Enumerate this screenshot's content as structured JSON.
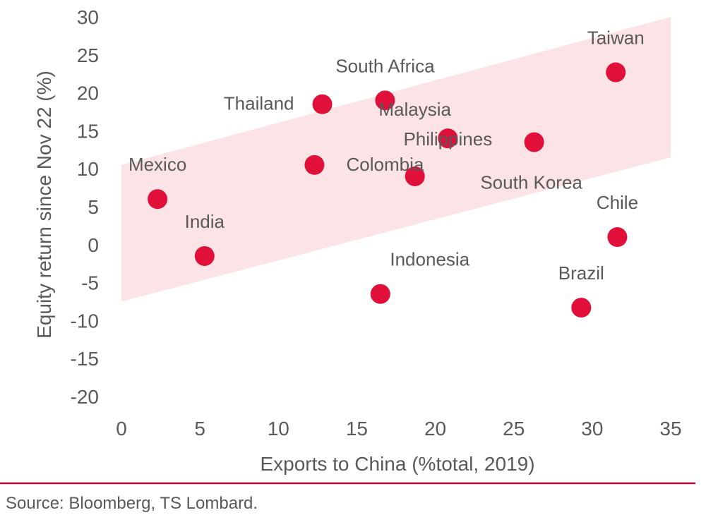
{
  "chart_data": {
    "type": "scatter",
    "xlabel": "Exports to China (%total, 2019)",
    "ylabel": "Equity return since Nov 22 (%)",
    "xlim": [
      0,
      35
    ],
    "ylim": [
      -20,
      30
    ],
    "x_ticks": [
      0,
      5,
      10,
      15,
      20,
      25,
      30,
      35
    ],
    "y_ticks": [
      30,
      25,
      20,
      15,
      10,
      5,
      0,
      -5,
      -10,
      -15,
      -20
    ],
    "grid": false,
    "point_color": "#E0103A",
    "band_color": "#FCE4E6",
    "separator_color": "#B00A3C",
    "band": {
      "x": [
        0,
        35
      ],
      "lower": [
        -7.5,
        11.5
      ],
      "upper": [
        10.5,
        30
      ]
    },
    "points": [
      {
        "label": "Mexico",
        "x": 2.3,
        "y": 6
      },
      {
        "label": "India",
        "x": 5.3,
        "y": -1.5
      },
      {
        "label": "Thailand",
        "x": 12.8,
        "y": 18.5
      },
      {
        "label": "Colombia",
        "x": 12.3,
        "y": 10.5
      },
      {
        "label": "South Africa",
        "x": 16.8,
        "y": 19
      },
      {
        "label": "Indonesia",
        "x": 16.5,
        "y": -6.5
      },
      {
        "label": "Malaysia",
        "x": 18.7,
        "y": 9
      },
      {
        "label": "Philippines",
        "x": 20.8,
        "y": 14
      },
      {
        "label": "South Korea",
        "x": 26.3,
        "y": 13.5
      },
      {
        "label": "Taiwan",
        "x": 31.5,
        "y": 22.7
      },
      {
        "label": "Chile",
        "x": 31.6,
        "y": 1
      },
      {
        "label": "Brazil",
        "x": 29.3,
        "y": -8.3
      }
    ]
  },
  "source": "Source: Bloomberg, TS Lombard."
}
